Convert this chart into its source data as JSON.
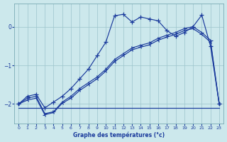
{
  "xlabel": "Graphe des températures (°c)",
  "bg_color": "#cce8ec",
  "line_color": "#1a3a9c",
  "xlim": [
    -0.5,
    23.5
  ],
  "ylim": [
    -2.5,
    0.6
  ],
  "yticks": [
    0,
    -1,
    -2
  ],
  "xticks": [
    0,
    1,
    2,
    3,
    4,
    5,
    6,
    7,
    8,
    9,
    10,
    11,
    12,
    13,
    14,
    15,
    16,
    17,
    18,
    19,
    20,
    21,
    22,
    23
  ],
  "line1_x": [
    0,
    1,
    2,
    3,
    4,
    5,
    6,
    7,
    8,
    9,
    10,
    11,
    12,
    13,
    14,
    15,
    16,
    17,
    18,
    19,
    20,
    21,
    22,
    23
  ],
  "line1_y": [
    -2.0,
    -1.8,
    -1.75,
    -2.1,
    -1.95,
    -1.8,
    -1.6,
    -1.35,
    -1.1,
    -0.75,
    -0.4,
    0.28,
    0.32,
    0.12,
    0.25,
    0.2,
    0.15,
    -0.1,
    -0.25,
    -0.15,
    -0.0,
    0.3,
    -0.5,
    -2.0
  ],
  "line2_x": [
    0,
    1,
    2,
    3,
    4,
    5,
    6,
    7,
    8,
    9,
    10,
    11,
    12,
    13,
    14,
    15,
    16,
    17,
    18,
    19,
    20,
    21,
    22,
    23
  ],
  "line2_y": [
    -2.0,
    -1.85,
    -1.8,
    -2.25,
    -2.2,
    -1.95,
    -1.8,
    -1.6,
    -1.45,
    -1.3,
    -1.1,
    -0.85,
    -0.7,
    -0.55,
    -0.48,
    -0.42,
    -0.3,
    -0.22,
    -0.15,
    -0.05,
    0.0,
    -0.15,
    -0.35,
    -2.0
  ],
  "line3_x": [
    0,
    1,
    2,
    3,
    4,
    5,
    6,
    7,
    8,
    9,
    10,
    11,
    12,
    13,
    14,
    15,
    16,
    17,
    18,
    19,
    20,
    21,
    22,
    23
  ],
  "line3_y": [
    -2.0,
    -1.9,
    -1.85,
    -2.28,
    -2.22,
    -1.98,
    -1.85,
    -1.65,
    -1.5,
    -1.35,
    -1.15,
    -0.9,
    -0.75,
    -0.6,
    -0.53,
    -0.47,
    -0.35,
    -0.27,
    -0.2,
    -0.1,
    -0.05,
    -0.2,
    -0.4,
    -2.0
  ],
  "line4_x": [
    0,
    23
  ],
  "line4_y": [
    -2.1,
    -2.1
  ],
  "grid_color": "#9cc4cc"
}
